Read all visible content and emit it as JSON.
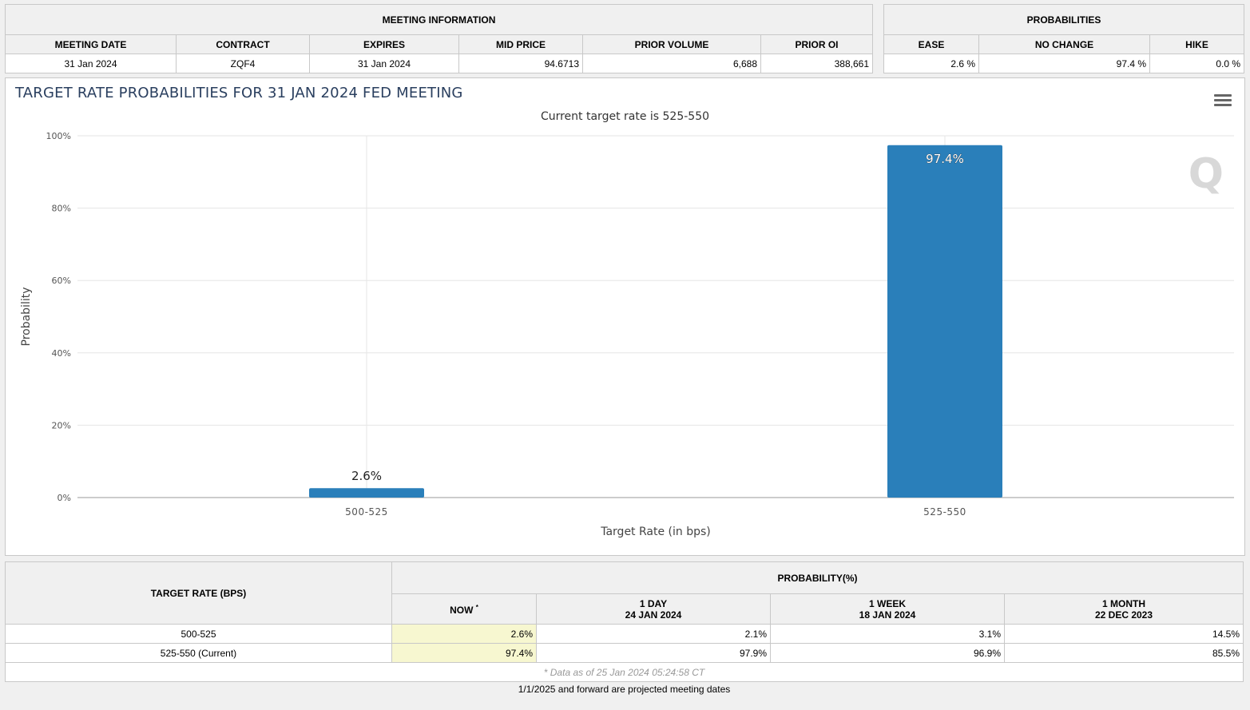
{
  "meeting_info": {
    "caption": "MEETING INFORMATION",
    "headers": [
      "MEETING DATE",
      "CONTRACT",
      "EXPIRES",
      "MID PRICE",
      "PRIOR VOLUME",
      "PRIOR OI"
    ],
    "row": [
      "31 Jan 2024",
      "ZQF4",
      "31 Jan 2024",
      "94.6713",
      "6,688",
      "388,661"
    ]
  },
  "probabilities": {
    "caption": "PROBABILITIES",
    "headers": [
      "EASE",
      "NO CHANGE",
      "HIKE"
    ],
    "row": [
      "2.6 %",
      "97.4 %",
      "0.0 %"
    ]
  },
  "chart": {
    "title": "TARGET RATE PROBABILITIES FOR 31 JAN 2024 FED MEETING",
    "subtitle": "Current target rate is 525-550",
    "watermark": "Q",
    "menu_icon": "hamburger-menu-icon"
  },
  "chart_data": {
    "type": "bar",
    "categories": [
      "500-525",
      "525-550"
    ],
    "values": [
      2.6,
      97.4
    ],
    "data_labels": [
      "2.6%",
      "97.4%"
    ],
    "xlabel": "Target Rate (in bps)",
    "ylabel": "Probability",
    "ylim": [
      0,
      100
    ],
    "yticks": [
      "0%",
      "20%",
      "40%",
      "60%",
      "80%",
      "100%"
    ],
    "grid": true,
    "bar_color": "#2a7fba"
  },
  "rate_table": {
    "col_target": "TARGET RATE (BPS)",
    "col_prob": "PROBABILITY(%)",
    "sub_headers": [
      {
        "line1": "NOW",
        "sup": "*",
        "line2": ""
      },
      {
        "line1": "1 DAY",
        "line2": "24 JAN 2024"
      },
      {
        "line1": "1 WEEK",
        "line2": "18 JAN 2024"
      },
      {
        "line1": "1 MONTH",
        "line2": "22 DEC 2023"
      }
    ],
    "rows": [
      {
        "rate": "500-525",
        "now": "2.6%",
        "day": "2.1%",
        "week": "3.1%",
        "month": "14.5%"
      },
      {
        "rate": "525-550 (Current)",
        "now": "97.4%",
        "day": "97.9%",
        "week": "96.9%",
        "month": "85.5%"
      }
    ],
    "footnote": "* Data as of 25 Jan 2024 05:24:58 CT"
  },
  "projected_note": "1/1/2025 and forward are projected meeting dates"
}
